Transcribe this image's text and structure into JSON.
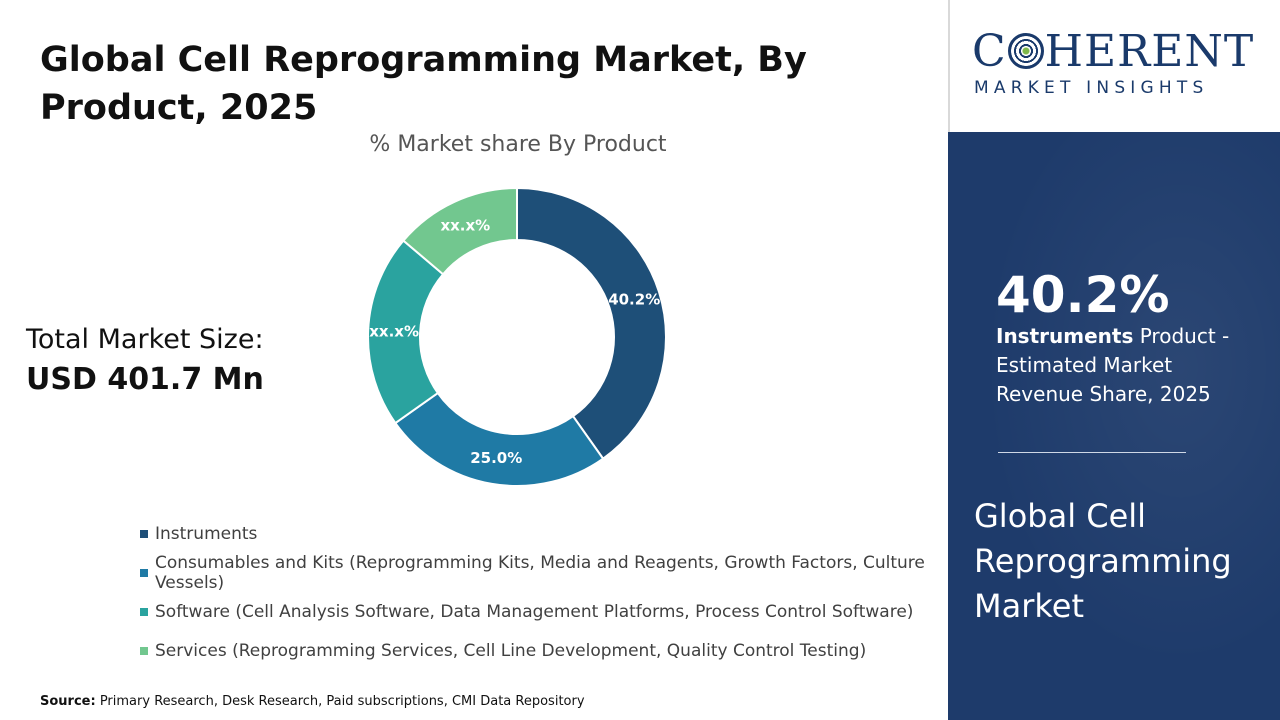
{
  "title": "Global Cell Reprogramming Market, By Product, 2025",
  "total_market": {
    "label": "Total Market Size:",
    "value": "USD 401.7 Mn"
  },
  "source": {
    "prefix": "Source:",
    "text": " Primary Research, Desk Research, Paid subscriptions, CMI Data Repository"
  },
  "logo": {
    "main_before": "C",
    "main_after": "HERENT",
    "sub": "MARKET INSIGHTS"
  },
  "highlight": {
    "value": "40.2%",
    "segment": "Instruments",
    "desc": " Product - Estimated Market Revenue Share, 2025"
  },
  "side_title": "Global Cell Reprogramming Market",
  "chart_data": {
    "type": "pie",
    "subtype": "donut",
    "title": "% Market share By Product",
    "categories": [
      "Instruments",
      "Consumables and Kits (Reprogramming Kits, Media and Reagents, Growth Factors, Culture Vessels)",
      "Software (Cell Analysis Software, Data Management Platforms, Process Control Software)",
      "Services (Reprogramming Services, Cell Line Development, Quality Control Testing)"
    ],
    "values": [
      40.2,
      25.0,
      21.0,
      13.8
    ],
    "data_labels": [
      "40.2%",
      "25.0%",
      "xx.x%",
      "xx.x%"
    ],
    "colors": [
      "#1e4f78",
      "#1f7aa5",
      "#2aa39f",
      "#72c78f"
    ],
    "legend_position": "bottom"
  }
}
